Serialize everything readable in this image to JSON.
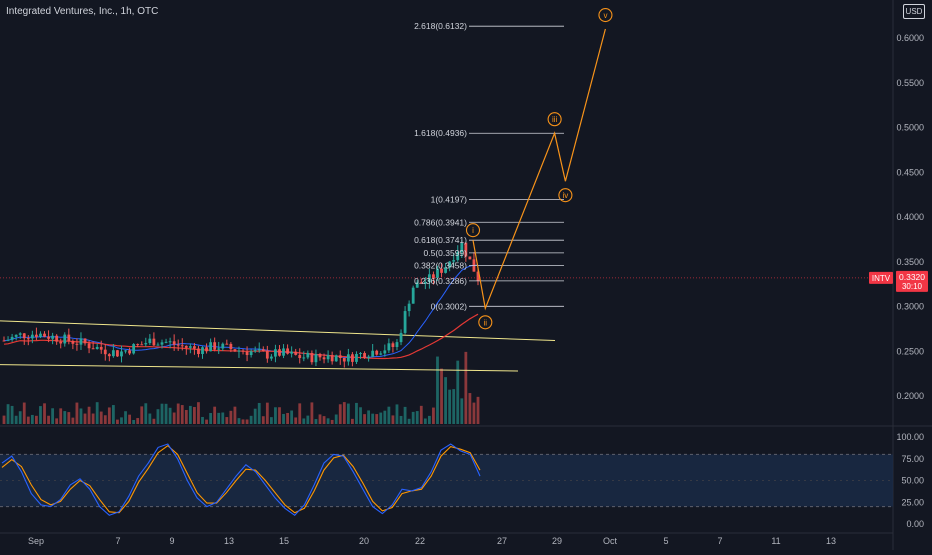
{
  "header": {
    "title": "Integrated Ventures, Inc., 1h, OTC",
    "currency": "USD"
  },
  "colors": {
    "background": "#131722",
    "up": "#26a69a",
    "down": "#ef5350",
    "channel": "#f0e68c",
    "wave": "#f7931a",
    "fib": "#d1d4dc",
    "ma_blue": "#2962ff",
    "ma_red": "#e53935",
    "stoch_k": "#2962ff",
    "stoch_d": "#ff9800",
    "price_tag": "#f23645"
  },
  "price_axis": {
    "ticks": [
      "0.6000",
      "0.5500",
      "0.5000",
      "0.4500",
      "0.4000",
      "0.3500",
      "0.3000",
      "0.2500",
      "0.2000"
    ],
    "current": {
      "symbol": "INTV",
      "price": "0.3320",
      "countdown": "30:10"
    }
  },
  "time_axis": {
    "labels": [
      "Sep",
      "7",
      "9",
      "13",
      "15",
      "20",
      "22",
      "27",
      "29",
      "Oct",
      "5",
      "7",
      "11",
      "13"
    ]
  },
  "oscillator": {
    "ticks": [
      "100.00",
      "75.00",
      "50.00",
      "25.00",
      "0.00"
    ],
    "upper_band": 80,
    "lower_band": 20
  },
  "fib_levels": [
    {
      "label": "2.618(0.6132)",
      "price": 0.6132
    },
    {
      "label": "1.618(0.4936)",
      "price": 0.4936
    },
    {
      "label": "1(0.4197)",
      "price": 0.4197
    },
    {
      "label": "0.786(0.3941)",
      "price": 0.3941
    },
    {
      "label": "0.618(0.3741)",
      "price": 0.3741
    },
    {
      "label": "0.5(0.3599)",
      "price": 0.3599
    },
    {
      "label": "0.382(0.3458)",
      "price": 0.3458
    },
    {
      "label": "0.236(0.3286)",
      "price": 0.3286
    },
    {
      "label": "0(0.3002)",
      "price": 0.3002
    }
  ],
  "wave_labels": [
    "i",
    "ii",
    "iii",
    "iv",
    "v"
  ],
  "chart_data": {
    "type": "line",
    "x_labels": [
      "Sep",
      "7",
      "9",
      "13",
      "15",
      "20",
      "22",
      "27",
      "29",
      "Oct",
      "5",
      "7",
      "11",
      "13"
    ],
    "price_range": [
      0.175,
      0.64
    ],
    "price_series": [
      0.262,
      0.268,
      0.27,
      0.266,
      0.262,
      0.258,
      0.252,
      0.248,
      0.255,
      0.262,
      0.26,
      0.255,
      0.252,
      0.256,
      0.252,
      0.25,
      0.246,
      0.248,
      0.244,
      0.243,
      0.245,
      0.242,
      0.248,
      0.252,
      0.256,
      0.322,
      0.33,
      0.345,
      0.37,
      0.332
    ],
    "channel_upper": [
      [
        0,
        0.284
      ],
      [
        30,
        0.262
      ]
    ],
    "channel_lower": [
      [
        0,
        0.235
      ],
      [
        28,
        0.228
      ]
    ],
    "wave_path": [
      [
        26.2,
        0.3741
      ],
      [
        27,
        0.298
      ],
      [
        31.5,
        0.4936
      ],
      [
        32.2,
        0.44
      ],
      [
        34.8,
        0.61
      ]
    ],
    "wave_points": [
      {
        "label": "i",
        "x": 26.2,
        "price": 0.3741
      },
      {
        "label": "ii",
        "x": 27,
        "price": 0.298
      },
      {
        "label": "iii",
        "x": 31.5,
        "price": 0.4936
      },
      {
        "label": "iv",
        "x": 32.2,
        "price": 0.44
      },
      {
        "label": "v",
        "x": 34.8,
        "price": 0.61
      }
    ],
    "stoch_k": [
      70,
      78,
      60,
      35,
      22,
      20,
      28,
      45,
      52,
      40,
      20,
      10,
      14,
      32,
      55,
      70,
      88,
      92,
      75,
      50,
      30,
      20,
      25,
      40,
      55,
      68,
      60,
      45,
      30,
      18,
      10,
      22,
      45,
      70,
      80,
      78,
      60,
      40,
      20,
      12,
      22,
      40,
      38,
      42,
      60,
      85,
      92,
      84,
      80,
      55
    ],
    "stoch_d": [
      65,
      74,
      66,
      45,
      28,
      22,
      26,
      40,
      50,
      44,
      28,
      14,
      13,
      26,
      48,
      64,
      82,
      90,
      80,
      58,
      36,
      24,
      24,
      36,
      50,
      63,
      62,
      50,
      36,
      22,
      13,
      18,
      38,
      62,
      76,
      79,
      66,
      47,
      26,
      15,
      19,
      35,
      38,
      40,
      55,
      78,
      89,
      86,
      82,
      62
    ]
  }
}
